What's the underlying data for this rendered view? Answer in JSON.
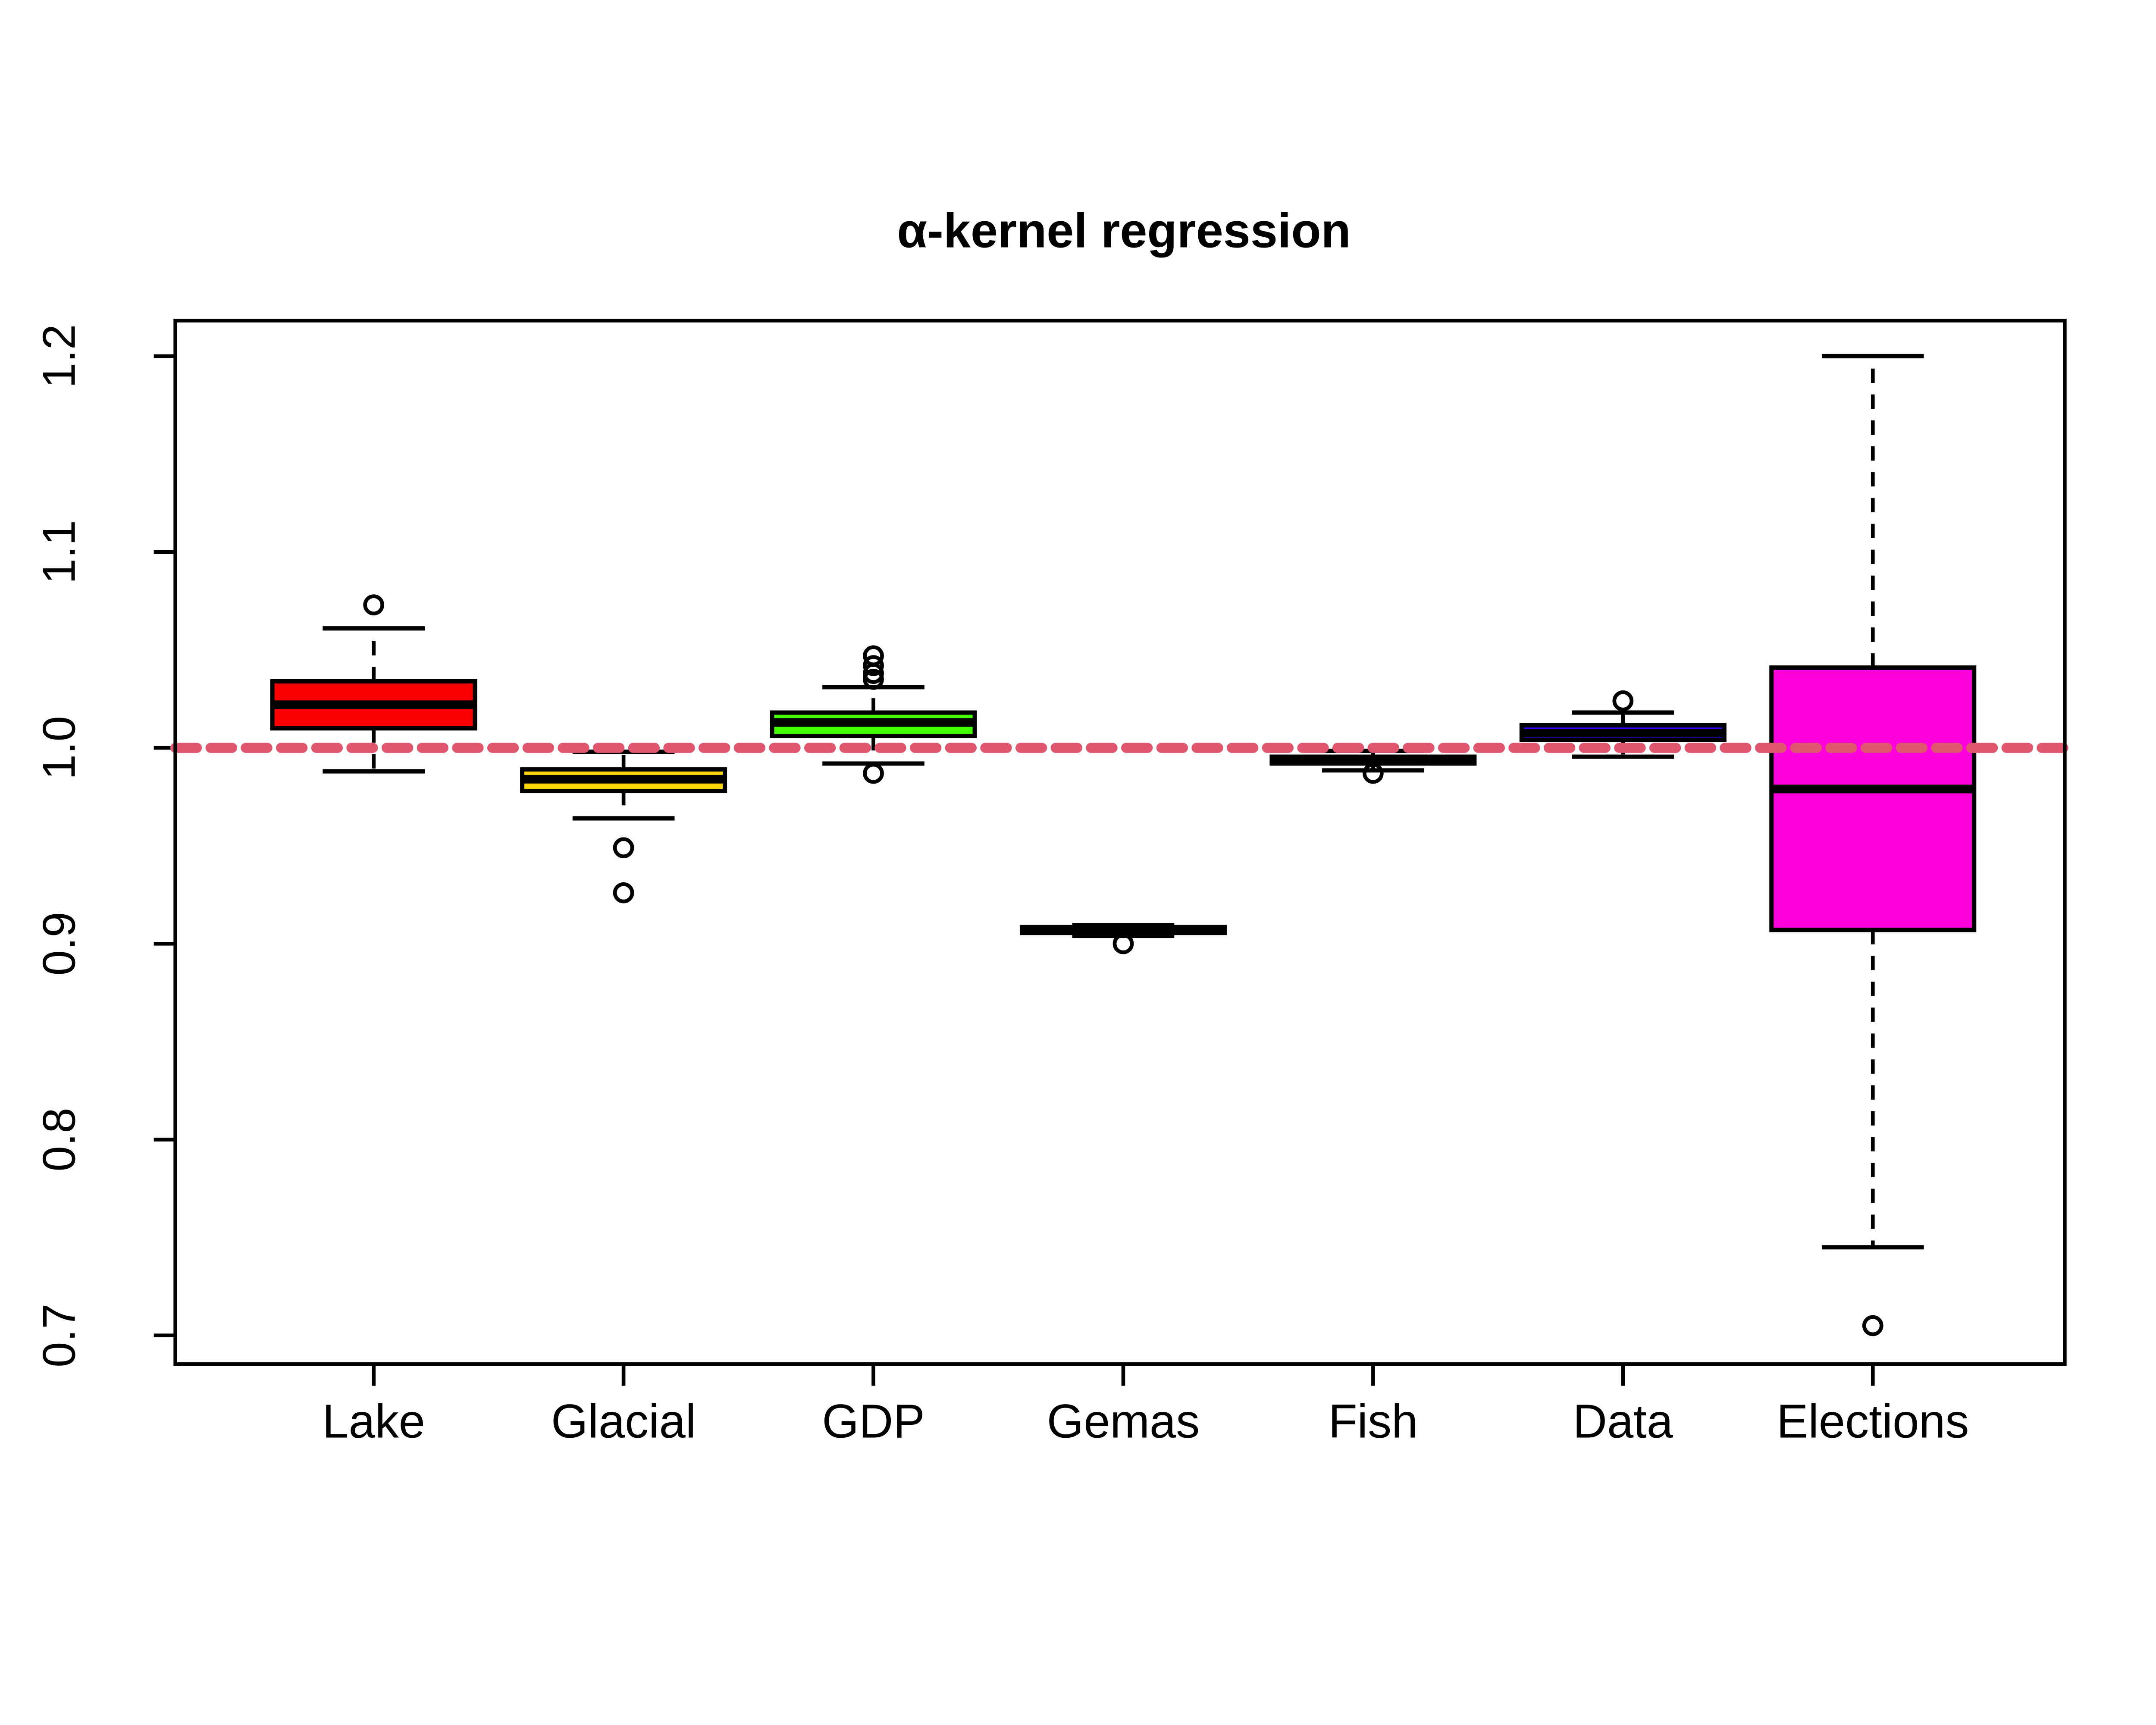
{
  "title": "α-kernel regression",
  "reference_line": {
    "y": 1.0,
    "color": "#E0566E",
    "style": "dashed"
  },
  "axes": {
    "ylim": [
      0.687,
      1.22
    ],
    "y_ticks": [
      {
        "value": 0.7,
        "label": "0.7"
      },
      {
        "value": 0.8,
        "label": "0.8"
      },
      {
        "value": 0.9,
        "label": "0.9"
      },
      {
        "value": 1.0,
        "label": "1.0"
      },
      {
        "value": 1.1,
        "label": "1.1"
      },
      {
        "value": 1.2,
        "label": "1.2"
      }
    ],
    "grid": false
  },
  "chart_data": {
    "type": "boxplot",
    "categories": [
      "Lake",
      "Glacial",
      "GDP",
      "Gemas",
      "Fish",
      "Data",
      "Elections"
    ],
    "series": [
      {
        "name": "Lake",
        "color": "#FA0000",
        "whisker_low": 0.988,
        "q1": 1.01,
        "median": 1.022,
        "q3": 1.034,
        "whisker_high": 1.061,
        "outliers": [
          1.073
        ]
      },
      {
        "name": "Glacial",
        "color": "#FFD700",
        "whisker_low": 0.964,
        "q1": 0.978,
        "median": 0.984,
        "q3": 0.989,
        "whisker_high": 0.998,
        "outliers": [
          0.949,
          0.926
        ]
      },
      {
        "name": "GDP",
        "color": "#44FF00",
        "whisker_low": 0.992,
        "q1": 1.006,
        "median": 1.013,
        "q3": 1.018,
        "whisker_high": 1.031,
        "outliers": [
          1.047,
          1.042,
          1.038,
          1.035,
          0.987
        ]
      },
      {
        "name": "Gemas",
        "color": "#000000",
        "whisker_low": 0.904,
        "q1": 0.9055,
        "median": 0.907,
        "q3": 0.9085,
        "whisker_high": 0.9095,
        "outliers": [
          0.9
        ]
      },
      {
        "name": "Fish",
        "color": "#000000",
        "whisker_low": 0.9885,
        "q1": 0.992,
        "median": 0.9935,
        "q3": 0.9955,
        "whisker_high": 0.9985,
        "outliers": [
          0.987
        ]
      },
      {
        "name": "Data",
        "color": "#3A00FF",
        "whisker_low": 0.9955,
        "q1": 1.004,
        "median": 1.0075,
        "q3": 1.0115,
        "whisker_high": 1.018,
        "outliers": [
          1.024
        ]
      },
      {
        "name": "Elections",
        "color": "#FF00DC",
        "whisker_low": 0.745,
        "q1": 0.907,
        "median": 0.979,
        "q3": 1.041,
        "whisker_high": 1.2,
        "outliers": [
          0.705
        ]
      }
    ]
  }
}
